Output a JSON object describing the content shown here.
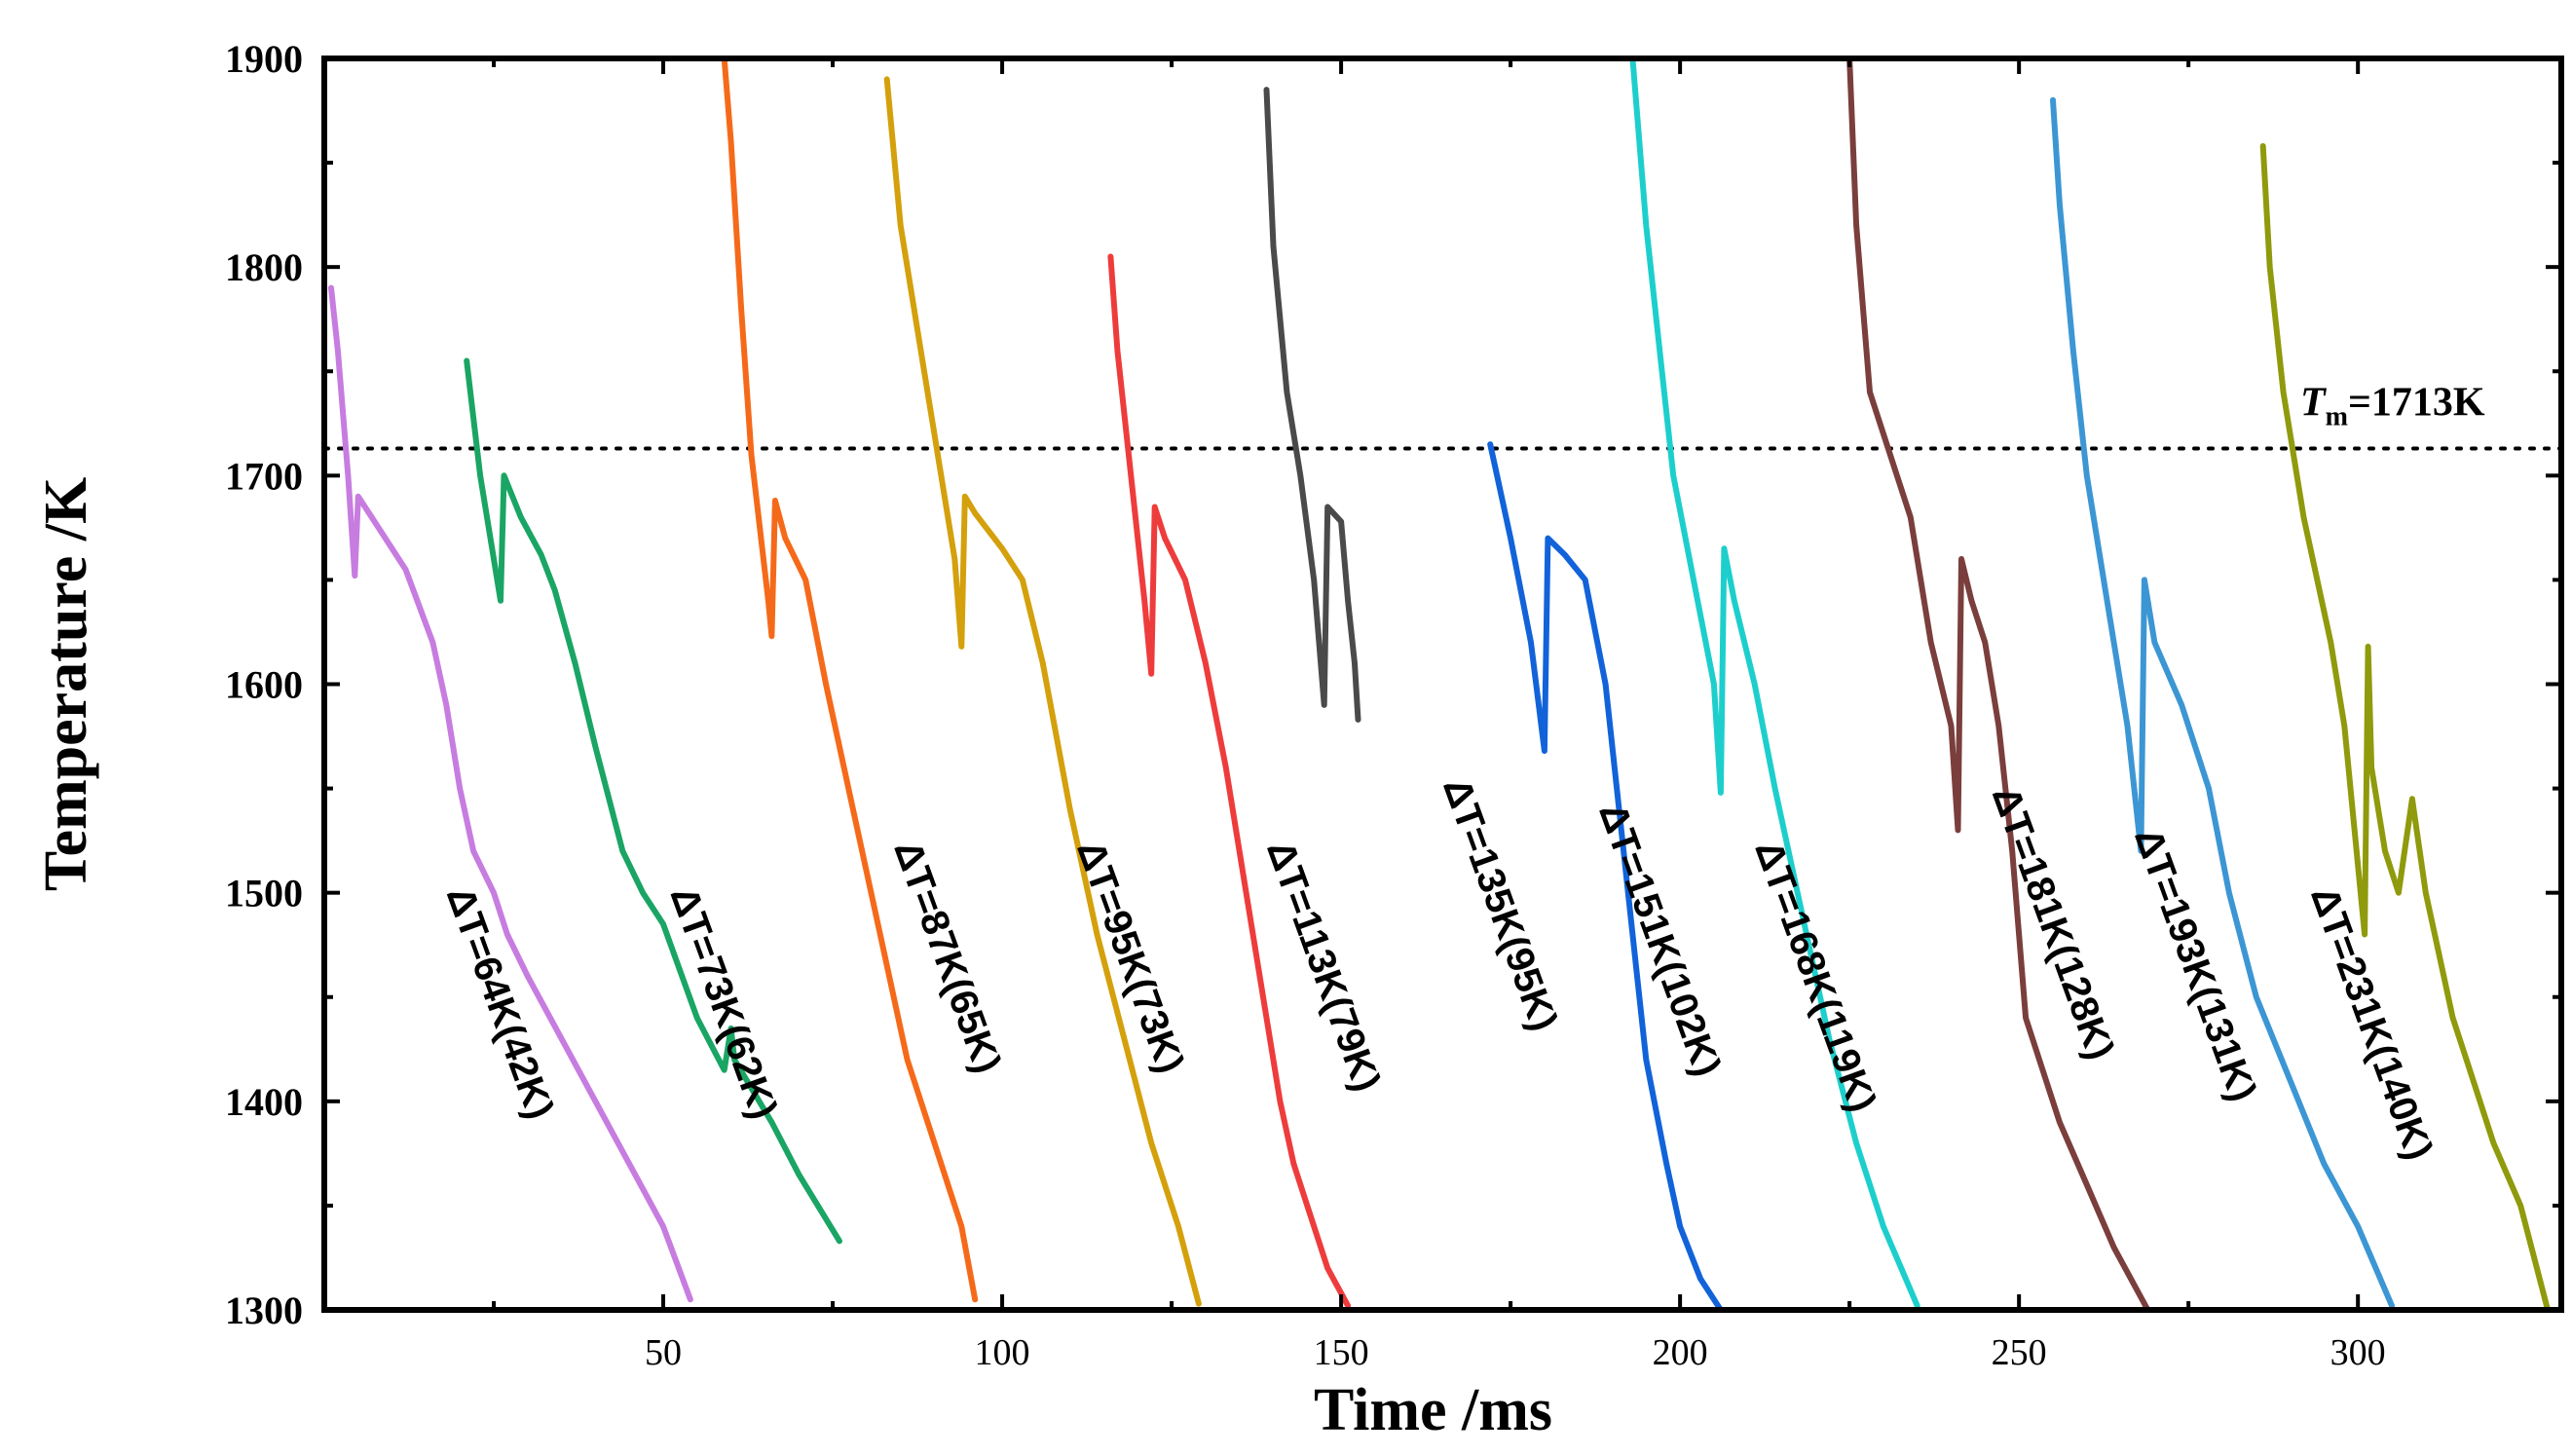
{
  "chart_data": {
    "type": "line",
    "title": "",
    "xlabel": "Time /ms",
    "ylabel": "Temperature /K",
    "xlim": [
      0,
      330
    ],
    "ylim": [
      1300,
      1900
    ],
    "xticks": [
      50,
      100,
      150,
      200,
      250,
      300
    ],
    "yticks": [
      1300,
      1400,
      1500,
      1600,
      1700,
      1800,
      1900
    ],
    "reference_line": {
      "value": 1713,
      "label_italic": "T",
      "label_sub": "m",
      "label_rest": "=1713K"
    },
    "series": [
      {
        "name": "ΔT=64K(42K)",
        "color": "#c77ce0",
        "points": [
          [
            1,
            1790
          ],
          [
            2,
            1760
          ],
          [
            3.5,
            1700
          ],
          [
            4.5,
            1652
          ],
          [
            5,
            1690
          ],
          [
            6,
            1685
          ],
          [
            8,
            1675
          ],
          [
            12,
            1655
          ],
          [
            16,
            1620
          ],
          [
            18,
            1590
          ],
          [
            20,
            1550
          ],
          [
            22,
            1520
          ],
          [
            25,
            1500
          ],
          [
            27,
            1480
          ],
          [
            30,
            1460
          ],
          [
            35,
            1430
          ],
          [
            40,
            1400
          ],
          [
            45,
            1370
          ],
          [
            50,
            1340
          ],
          [
            54,
            1305
          ]
        ]
      },
      {
        "name": "ΔT=73K(62K)",
        "color": "#1aa564",
        "points": [
          [
            21,
            1755
          ],
          [
            23,
            1700
          ],
          [
            26,
            1640
          ],
          [
            26.5,
            1700
          ],
          [
            29,
            1680
          ],
          [
            32,
            1662
          ],
          [
            34,
            1645
          ],
          [
            37,
            1610
          ],
          [
            40,
            1570
          ],
          [
            44,
            1520
          ],
          [
            47,
            1500
          ],
          [
            50,
            1485
          ],
          [
            55,
            1440
          ],
          [
            59,
            1415
          ],
          [
            60,
            1435
          ],
          [
            60.5,
            1420
          ],
          [
            66,
            1390
          ],
          [
            70,
            1365
          ],
          [
            76,
            1333
          ]
        ]
      },
      {
        "name": "ΔT=87K(65K)",
        "color": "#f56a1a",
        "points": [
          [
            59,
            1900
          ],
          [
            60,
            1860
          ],
          [
            61.5,
            1780
          ],
          [
            63,
            1710
          ],
          [
            65.5,
            1640
          ],
          [
            66,
            1623
          ],
          [
            66.5,
            1688
          ],
          [
            68,
            1670
          ],
          [
            71,
            1650
          ],
          [
            74,
            1600
          ],
          [
            78,
            1540
          ],
          [
            82,
            1480
          ],
          [
            86,
            1420
          ],
          [
            90,
            1380
          ],
          [
            94,
            1340
          ],
          [
            96,
            1305
          ]
        ]
      },
      {
        "name": "ΔT=95K(73K)",
        "color": "#d4a00c",
        "points": [
          [
            83,
            1890
          ],
          [
            85,
            1820
          ],
          [
            88,
            1760
          ],
          [
            91,
            1700
          ],
          [
            93,
            1660
          ],
          [
            94,
            1618
          ],
          [
            94.5,
            1690
          ],
          [
            96,
            1682
          ],
          [
            100,
            1665
          ],
          [
            103,
            1650
          ],
          [
            106,
            1610
          ],
          [
            110,
            1540
          ],
          [
            114,
            1480
          ],
          [
            118,
            1430
          ],
          [
            122,
            1380
          ],
          [
            126,
            1340
          ],
          [
            129,
            1303
          ]
        ]
      },
      {
        "name": "ΔT=113K(79K)",
        "color": "#ee3c3c",
        "points": [
          [
            116,
            1805
          ],
          [
            117,
            1760
          ],
          [
            119,
            1700
          ],
          [
            121,
            1640
          ],
          [
            122,
            1605
          ],
          [
            122.5,
            1685
          ],
          [
            124,
            1670
          ],
          [
            127,
            1650
          ],
          [
            130,
            1610
          ],
          [
            133,
            1560
          ],
          [
            136,
            1500
          ],
          [
            139,
            1440
          ],
          [
            141,
            1400
          ],
          [
            143,
            1370
          ],
          [
            145,
            1350
          ],
          [
            148,
            1320
          ],
          [
            151,
            1302
          ]
        ]
      },
      {
        "name": "ΔT=135K(95K)",
        "color": "#4a4a4a",
        "points": [
          [
            139,
            1885
          ],
          [
            140,
            1810
          ],
          [
            142,
            1740
          ],
          [
            144,
            1700
          ],
          [
            146,
            1650
          ],
          [
            147.5,
            1590
          ],
          [
            148,
            1685
          ],
          [
            150,
            1678
          ],
          [
            151,
            1640
          ],
          [
            152,
            1610
          ],
          [
            152.5,
            1583
          ]
        ]
      },
      {
        "name": "ΔT=151K(102K)",
        "color": "#1263d9",
        "points": [
          [
            172,
            1715
          ],
          [
            173,
            1700
          ],
          [
            175,
            1670
          ],
          [
            178,
            1620
          ],
          [
            180,
            1568
          ],
          [
            180.5,
            1670
          ],
          [
            183,
            1662
          ],
          [
            186,
            1650
          ],
          [
            189,
            1600
          ],
          [
            191,
            1540
          ],
          [
            193,
            1480
          ],
          [
            195,
            1420
          ],
          [
            198,
            1370
          ],
          [
            200,
            1340
          ],
          [
            203,
            1315
          ],
          [
            206,
            1300
          ]
        ]
      },
      {
        "name": "ΔT=168K(119K)",
        "color": "#1dcfcc",
        "points": [
          [
            193,
            1900
          ],
          [
            195,
            1820
          ],
          [
            197,
            1760
          ],
          [
            199,
            1700
          ],
          [
            202,
            1650
          ],
          [
            205,
            1600
          ],
          [
            206,
            1548
          ],
          [
            206.5,
            1665
          ],
          [
            208,
            1640
          ],
          [
            211,
            1600
          ],
          [
            214,
            1550
          ],
          [
            218,
            1490
          ],
          [
            222,
            1430
          ],
          [
            226,
            1380
          ],
          [
            230,
            1340
          ],
          [
            235,
            1302
          ]
        ]
      },
      {
        "name": "ΔT=181K(128K)",
        "color": "#7a3e3c",
        "points": [
          [
            225,
            1900
          ],
          [
            226,
            1820
          ],
          [
            228,
            1740
          ],
          [
            231,
            1710
          ],
          [
            234,
            1680
          ],
          [
            237,
            1620
          ],
          [
            240,
            1580
          ],
          [
            241,
            1530
          ],
          [
            241.5,
            1660
          ],
          [
            243,
            1640
          ],
          [
            245,
            1620
          ],
          [
            247,
            1580
          ],
          [
            249,
            1520
          ],
          [
            251,
            1440
          ],
          [
            253,
            1420
          ],
          [
            256,
            1390
          ],
          [
            260,
            1360
          ],
          [
            264,
            1330
          ],
          [
            269,
            1300
          ]
        ]
      },
      {
        "name": "ΔT=193K(131K)",
        "color": "#3c96d4",
        "points": [
          [
            255,
            1880
          ],
          [
            256,
            1830
          ],
          [
            258,
            1760
          ],
          [
            260,
            1700
          ],
          [
            263,
            1640
          ],
          [
            266,
            1580
          ],
          [
            268,
            1520
          ],
          [
            268.5,
            1650
          ],
          [
            270,
            1620
          ],
          [
            274,
            1590
          ],
          [
            278,
            1550
          ],
          [
            281,
            1500
          ],
          [
            285,
            1450
          ],
          [
            290,
            1410
          ],
          [
            295,
            1370
          ],
          [
            300,
            1340
          ],
          [
            305,
            1302
          ]
        ]
      },
      {
        "name": "ΔT=231K(140K)",
        "color": "#8f9a0c",
        "points": [
          [
            286,
            1858
          ],
          [
            287,
            1800
          ],
          [
            289,
            1740
          ],
          [
            292,
            1680
          ],
          [
            296,
            1620
          ],
          [
            298,
            1580
          ],
          [
            301,
            1480
          ],
          [
            301.5,
            1618
          ],
          [
            302,
            1560
          ],
          [
            304,
            1520
          ],
          [
            306,
            1500
          ],
          [
            308,
            1545
          ],
          [
            310,
            1500
          ],
          [
            312,
            1470
          ],
          [
            314,
            1440
          ],
          [
            316,
            1420
          ],
          [
            320,
            1380
          ],
          [
            324,
            1350
          ],
          [
            328,
            1300
          ]
        ]
      }
    ]
  }
}
